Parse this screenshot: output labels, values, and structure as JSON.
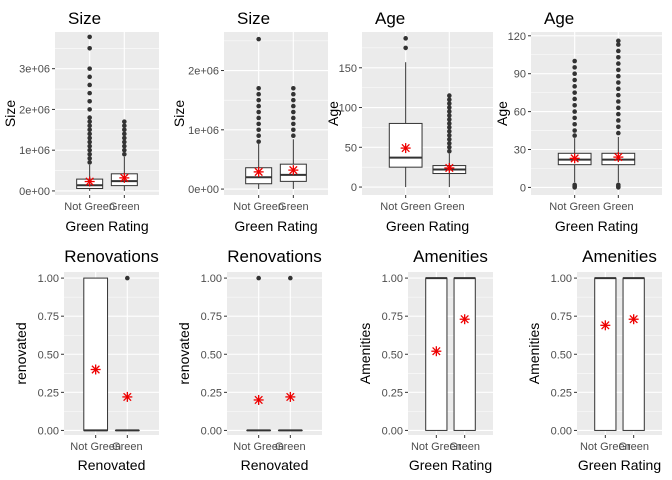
{
  "colors": {
    "panel_bg": "#ebebeb",
    "grid_major": "#ffffff",
    "grid_minor": "#f4f4f4",
    "box_fill": "#ffffff",
    "box_stroke": "#333333",
    "outlier": "#333333",
    "mean_marker": "#ee0000",
    "axis_text": "#4d4d4d",
    "title_text": "#000000"
  },
  "chart_data": [
    {
      "type": "boxplot",
      "title": "Size",
      "xlabel": "Green Rating",
      "ylabel": "Size",
      "categories": [
        "Not Green",
        "Green"
      ],
      "ylim": [
        -100000,
        3900000
      ],
      "yticks": [
        0,
        1000000,
        2000000,
        3000000
      ],
      "yticklabels": [
        "0e+00",
        "1e+06",
        "2e+06",
        "3e+06"
      ],
      "grid": true,
      "boxes": [
        {
          "q1": 60000,
          "median": 140000,
          "q3": 290000,
          "whisker_low": 1000,
          "whisker_high": 640000,
          "mean": 230000,
          "outliers": [
            700000,
            800000,
            900000,
            1000000,
            1100000,
            1200000,
            1300000,
            1400000,
            1500000,
            1600000,
            1700000,
            1800000,
            2000000,
            2200000,
            2400000,
            2600000,
            2800000,
            3000000,
            3500000,
            3780000
          ]
        },
        {
          "q1": 130000,
          "median": 240000,
          "q3": 420000,
          "whisker_low": 2000,
          "whisker_high": 840000,
          "mean": 320000,
          "outliers": [
            900000,
            1000000,
            1100000,
            1200000,
            1300000,
            1400000,
            1500000,
            1600000,
            1700000
          ]
        }
      ]
    },
    {
      "type": "boxplot",
      "title": "Size",
      "xlabel": "Green Rating",
      "ylabel": "Size",
      "categories": [
        "Not Green",
        "Green"
      ],
      "ylim": [
        -100000,
        2650000
      ],
      "yticks": [
        0,
        1000000,
        2000000
      ],
      "yticklabels": [
        "0e+00",
        "1e+06",
        "2e+06"
      ],
      "grid": true,
      "boxes": [
        {
          "q1": 90000,
          "median": 200000,
          "q3": 360000,
          "whisker_low": 1000,
          "whisker_high": 760000,
          "mean": 290000,
          "outliers": [
            800000,
            900000,
            1000000,
            1100000,
            1200000,
            1300000,
            1400000,
            1500000,
            1600000,
            1700000,
            2530000
          ]
        },
        {
          "q1": 130000,
          "median": 240000,
          "q3": 420000,
          "whisker_low": 2000,
          "whisker_high": 840000,
          "mean": 320000,
          "outliers": [
            900000,
            1000000,
            1100000,
            1200000,
            1300000,
            1400000,
            1500000,
            1600000,
            1700000
          ]
        }
      ]
    },
    {
      "type": "boxplot",
      "title": "Age",
      "xlabel": "Green Rating",
      "ylabel": "Age",
      "categories": [
        "Not Green",
        "Green"
      ],
      "ylim": [
        -10,
        195
      ],
      "yticks": [
        0,
        50,
        100,
        150
      ],
      "yticklabels": [
        "0",
        "50",
        "100",
        "150"
      ],
      "grid": true,
      "boxes": [
        {
          "q1": 25,
          "median": 37,
          "q3": 80,
          "whisker_low": 0,
          "whisker_high": 157,
          "mean": 49,
          "outliers": [
            175,
            187
          ]
        },
        {
          "q1": 17,
          "median": 22,
          "q3": 27,
          "whisker_low": 0,
          "whisker_high": 42,
          "mean": 24,
          "outliers": [
            45,
            50,
            55,
            60,
            65,
            70,
            75,
            80,
            85,
            90,
            95,
            100,
            105,
            110,
            115
          ]
        }
      ]
    },
    {
      "type": "boxplot",
      "title": "Age",
      "xlabel": "Green Rating",
      "ylabel": "Age",
      "categories": [
        "Not Green",
        "Green"
      ],
      "ylim": [
        -6,
        123
      ],
      "yticks": [
        0,
        30,
        60,
        90,
        120
      ],
      "yticklabels": [
        "0",
        "30",
        "60",
        "90",
        "120"
      ],
      "grid": true,
      "boxes": [
        {
          "q1": 18,
          "median": 22,
          "q3": 27,
          "whisker_low": 4,
          "whisker_high": 39,
          "mean": 23,
          "outliers": [
            0,
            1,
            2,
            41,
            45,
            50,
            55,
            60,
            65,
            70,
            75,
            80,
            85,
            90,
            95,
            100
          ]
        },
        {
          "q1": 18,
          "median": 22,
          "q3": 27,
          "whisker_low": 4,
          "whisker_high": 40,
          "mean": 24,
          "outliers": [
            0,
            1,
            2,
            43,
            48,
            53,
            58,
            63,
            68,
            73,
            78,
            83,
            88,
            93,
            98,
            103,
            108,
            113,
            116
          ]
        }
      ]
    },
    {
      "type": "boxplot",
      "title": "Renovations",
      "xlabel": "Renovated",
      "ylabel": "renovated",
      "categories": [
        "Not Green",
        "Green"
      ],
      "ylim": [
        -0.03,
        1.04
      ],
      "yticks": [
        0,
        0.25,
        0.5,
        0.75,
        1
      ],
      "yticklabels": [
        "0.00",
        "0.25",
        "0.50",
        "0.75",
        "1.00"
      ],
      "grid": true,
      "boxes": [
        {
          "q1": 0,
          "median": 0,
          "q3": 1,
          "whisker_low": 0,
          "whisker_high": 1,
          "mean": 0.4,
          "outliers": []
        },
        {
          "q1": 0,
          "median": 0,
          "q3": 0,
          "whisker_low": 0,
          "whisker_high": 0,
          "mean": 0.22,
          "outliers": [
            1
          ]
        }
      ]
    },
    {
      "type": "boxplot",
      "title": "Renovations",
      "xlabel": "Renovated",
      "ylabel": "renovated",
      "categories": [
        "Not Green",
        "Green"
      ],
      "ylim": [
        -0.03,
        1.04
      ],
      "yticks": [
        0,
        0.25,
        0.5,
        0.75,
        1
      ],
      "yticklabels": [
        "0.00",
        "0.25",
        "0.50",
        "0.75",
        "1.00"
      ],
      "grid": true,
      "boxes": [
        {
          "q1": 0,
          "median": 0,
          "q3": 0,
          "whisker_low": 0,
          "whisker_high": 0,
          "mean": 0.2,
          "outliers": [
            1
          ]
        },
        {
          "q1": 0,
          "median": 0,
          "q3": 0,
          "whisker_low": 0,
          "whisker_high": 0,
          "mean": 0.22,
          "outliers": [
            1
          ]
        }
      ]
    },
    {
      "type": "boxplot",
      "title": "Amenities",
      "xlabel": "Green Rating",
      "ylabel": "Amenities",
      "categories": [
        "Not Green",
        "Green"
      ],
      "ylim": [
        -0.03,
        1.04
      ],
      "yticks": [
        0,
        0.25,
        0.5,
        0.75,
        1
      ],
      "yticklabels": [
        "0.00",
        "0.25",
        "0.50",
        "0.75",
        "1.00"
      ],
      "grid": true,
      "boxes": [
        {
          "q1": 0,
          "median": 1,
          "q3": 1,
          "whisker_low": 0,
          "whisker_high": 1,
          "mean": 0.52,
          "outliers": []
        },
        {
          "q1": 0,
          "median": 1,
          "q3": 1,
          "whisker_low": 0,
          "whisker_high": 1,
          "mean": 0.73,
          "outliers": []
        }
      ]
    },
    {
      "type": "boxplot",
      "title": "Amenities",
      "xlabel": "Green Rating",
      "ylabel": "Amenities",
      "categories": [
        "Not Green",
        "Green"
      ],
      "ylim": [
        -0.03,
        1.04
      ],
      "yticks": [
        0,
        0.25,
        0.5,
        0.75,
        1
      ],
      "yticklabels": [
        "0.00",
        "0.25",
        "0.50",
        "0.75",
        "1.00"
      ],
      "grid": true,
      "boxes": [
        {
          "q1": 0,
          "median": 1,
          "q3": 1,
          "whisker_low": 0,
          "whisker_high": 1,
          "mean": 0.69,
          "outliers": []
        },
        {
          "q1": 0,
          "median": 1,
          "q3": 1,
          "whisker_low": 0,
          "whisker_high": 1,
          "mean": 0.73,
          "outliers": []
        }
      ]
    }
  ]
}
